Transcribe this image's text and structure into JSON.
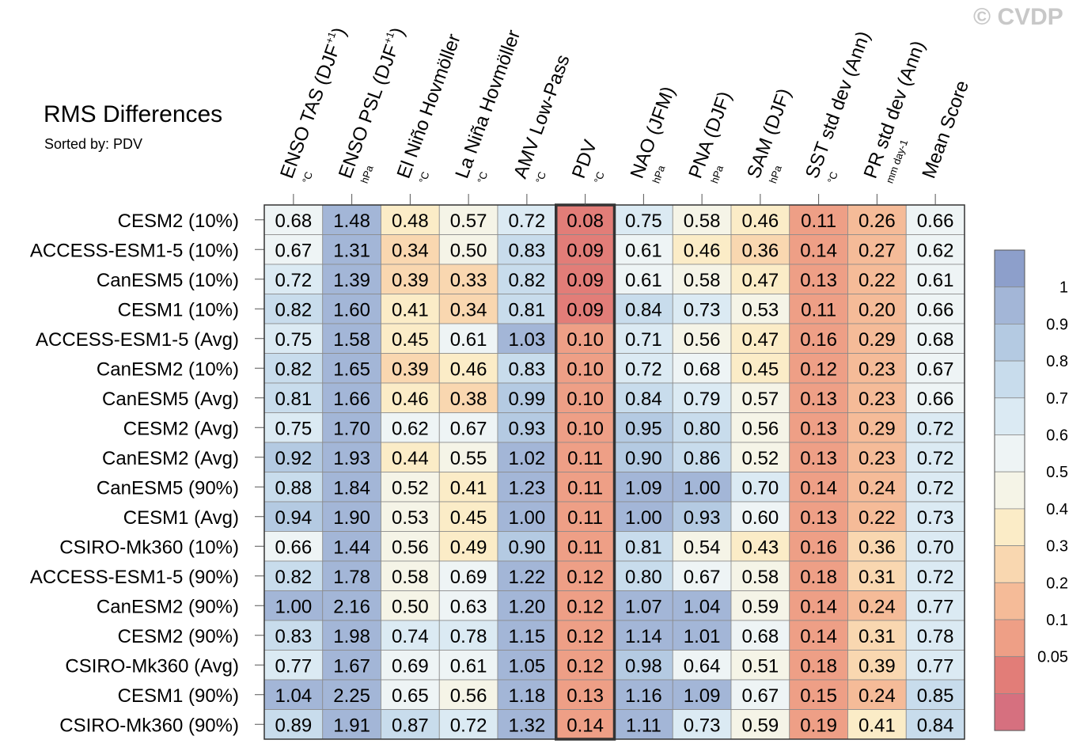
{
  "watermark": "© CVDP",
  "chart_data": {
    "type": "heatmap",
    "title": "RMS Differences",
    "subtitle": "Sorted by: PDV",
    "highlighted_column": "PDV",
    "columns": [
      {
        "label": "ENSO TAS (DJF",
        "sup": "+1",
        "close": ")",
        "unit": "°C"
      },
      {
        "label": "ENSO PSL (DJF",
        "sup": "+1",
        "close": ")",
        "unit": "hPa"
      },
      {
        "label": "El Niño Hovmöller",
        "sup": "",
        "close": "",
        "unit": "°C"
      },
      {
        "label": "La Niña Hovmöller",
        "sup": "",
        "close": "",
        "unit": "°C"
      },
      {
        "label": "AMV Low-Pass",
        "sup": "",
        "close": "",
        "unit": "°C"
      },
      {
        "label": "PDV",
        "sup": "",
        "close": "",
        "unit": "°C"
      },
      {
        "label": "NAO (JFM)",
        "sup": "",
        "close": "",
        "unit": "hPa"
      },
      {
        "label": "PNA (DJF)",
        "sup": "",
        "close": "",
        "unit": "hPa"
      },
      {
        "label": "SAM (DJF)",
        "sup": "",
        "close": "",
        "unit": "hPa"
      },
      {
        "label": "SST std dev (Ann)",
        "sup": "",
        "close": "",
        "unit": "°C"
      },
      {
        "label": "PR std dev (Ann)",
        "sup": "",
        "close": "",
        "unit": "mm day-1"
      },
      {
        "label": "Mean Score",
        "sup": "",
        "close": "",
        "unit": ""
      }
    ],
    "rows": [
      "CESM2 (10%)",
      "ACCESS-ESM1-5 (10%)",
      "CanESM5 (10%)",
      "CESM1 (10%)",
      "ACCESS-ESM1-5 (Avg)",
      "CanESM2 (10%)",
      "CanESM5 (Avg)",
      "CESM2 (Avg)",
      "CanESM2 (Avg)",
      "CanESM5 (90%)",
      "CESM1 (Avg)",
      "CSIRO-Mk360 (10%)",
      "ACCESS-ESM1-5 (90%)",
      "CanESM2 (90%)",
      "CESM2 (90%)",
      "CSIRO-Mk360 (Avg)",
      "CESM1 (90%)",
      "CSIRO-Mk360 (90%)"
    ],
    "values": [
      [
        "0.68",
        "1.48",
        "0.48",
        "0.57",
        "0.72",
        "0.08",
        "0.75",
        "0.58",
        "0.46",
        "0.11",
        "0.26",
        "0.66"
      ],
      [
        "0.67",
        "1.31",
        "0.34",
        "0.50",
        "0.83",
        "0.09",
        "0.61",
        "0.46",
        "0.36",
        "0.14",
        "0.27",
        "0.62"
      ],
      [
        "0.72",
        "1.39",
        "0.39",
        "0.33",
        "0.82",
        "0.09",
        "0.61",
        "0.58",
        "0.47",
        "0.13",
        "0.22",
        "0.61"
      ],
      [
        "0.82",
        "1.60",
        "0.41",
        "0.34",
        "0.81",
        "0.09",
        "0.84",
        "0.73",
        "0.53",
        "0.11",
        "0.20",
        "0.66"
      ],
      [
        "0.75",
        "1.58",
        "0.45",
        "0.61",
        "1.03",
        "0.10",
        "0.71",
        "0.56",
        "0.47",
        "0.16",
        "0.29",
        "0.68"
      ],
      [
        "0.82",
        "1.65",
        "0.39",
        "0.46",
        "0.83",
        "0.10",
        "0.72",
        "0.68",
        "0.45",
        "0.12",
        "0.23",
        "0.67"
      ],
      [
        "0.81",
        "1.66",
        "0.46",
        "0.38",
        "0.99",
        "0.10",
        "0.84",
        "0.79",
        "0.57",
        "0.13",
        "0.23",
        "0.66"
      ],
      [
        "0.75",
        "1.70",
        "0.62",
        "0.67",
        "0.93",
        "0.10",
        "0.95",
        "0.80",
        "0.56",
        "0.13",
        "0.29",
        "0.72"
      ],
      [
        "0.92",
        "1.93",
        "0.44",
        "0.55",
        "1.02",
        "0.11",
        "0.90",
        "0.86",
        "0.52",
        "0.13",
        "0.23",
        "0.72"
      ],
      [
        "0.88",
        "1.84",
        "0.52",
        "0.41",
        "1.23",
        "0.11",
        "1.09",
        "1.00",
        "0.70",
        "0.14",
        "0.24",
        "0.72"
      ],
      [
        "0.94",
        "1.90",
        "0.53",
        "0.45",
        "1.00",
        "0.11",
        "1.00",
        "0.93",
        "0.60",
        "0.13",
        "0.22",
        "0.73"
      ],
      [
        "0.66",
        "1.44",
        "0.56",
        "0.49",
        "0.90",
        "0.11",
        "0.81",
        "0.54",
        "0.43",
        "0.16",
        "0.36",
        "0.70"
      ],
      [
        "0.82",
        "1.78",
        "0.58",
        "0.69",
        "1.22",
        "0.12",
        "0.80",
        "0.67",
        "0.58",
        "0.18",
        "0.31",
        "0.72"
      ],
      [
        "1.00",
        "2.16",
        "0.50",
        "0.63",
        "1.20",
        "0.12",
        "1.07",
        "1.04",
        "0.59",
        "0.14",
        "0.24",
        "0.77"
      ],
      [
        "0.83",
        "1.98",
        "0.74",
        "0.78",
        "1.15",
        "0.12",
        "1.14",
        "1.01",
        "0.68",
        "0.14",
        "0.31",
        "0.78"
      ],
      [
        "0.77",
        "1.67",
        "0.69",
        "0.61",
        "1.05",
        "0.12",
        "0.98",
        "0.64",
        "0.51",
        "0.18",
        "0.39",
        "0.77"
      ],
      [
        "1.04",
        "2.25",
        "0.65",
        "0.56",
        "1.18",
        "0.13",
        "1.16",
        "1.09",
        "0.67",
        "0.15",
        "0.24",
        "0.85"
      ],
      [
        "0.89",
        "1.91",
        "0.87",
        "0.72",
        "1.32",
        "0.14",
        "1.11",
        "0.73",
        "0.59",
        "0.19",
        "0.41",
        "0.84"
      ]
    ],
    "colorbar": {
      "labels": [
        "1",
        "0.9",
        "0.8",
        "0.7",
        "0.6",
        "0.5",
        "0.4",
        "0.3",
        "0.2",
        "0.1",
        "0.05"
      ],
      "colors": [
        "#8d9fcb",
        "#a3b6d7",
        "#b4cae2",
        "#c8dcec",
        "#dbeaf3",
        "#eef4f5",
        "#f5f4e7",
        "#fbecc7",
        "#f9d7b0",
        "#f5bb98",
        "#ee9f86",
        "#e27d78",
        "#d6707f"
      ]
    }
  }
}
